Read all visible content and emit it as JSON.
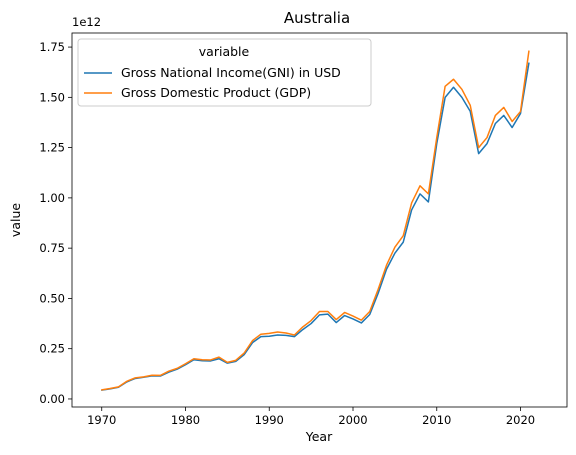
{
  "chart_data": {
    "type": "line",
    "title": "Australia",
    "xlabel": "Year",
    "ylabel": "value",
    "y_offset_label": "1e12",
    "xlim": [
      1966.45,
      2025.55
    ],
    "ylim": [
      -0.04,
      1.82
    ],
    "xticks": [
      1970,
      1980,
      1990,
      2000,
      2010,
      2020
    ],
    "xtick_labels": [
      "1970",
      "1980",
      "1990",
      "2000",
      "2010",
      "2020"
    ],
    "yticks": [
      0.0,
      0.25,
      0.5,
      0.75,
      1.0,
      1.25,
      1.5,
      1.75
    ],
    "ytick_labels": [
      "0.00",
      "0.25",
      "0.50",
      "0.75",
      "1.00",
      "1.25",
      "1.50",
      "1.75"
    ],
    "grid": false,
    "legend": {
      "title": "variable",
      "placement": "top-left"
    },
    "x": [
      1970,
      1971,
      1972,
      1973,
      1974,
      1975,
      1976,
      1977,
      1978,
      1979,
      1980,
      1981,
      1982,
      1983,
      1984,
      1985,
      1986,
      1987,
      1988,
      1989,
      1990,
      1991,
      1992,
      1993,
      1994,
      1995,
      1996,
      1997,
      1998,
      1999,
      2000,
      2001,
      2002,
      2003,
      2004,
      2005,
      2006,
      2007,
      2008,
      2009,
      2010,
      2011,
      2012,
      2013,
      2014,
      2015,
      2016,
      2017,
      2018,
      2019,
      2020,
      2021
    ],
    "series": [
      {
        "name": "Gross National Income(GNI) in USD",
        "color": "#1f77b4",
        "values": [
          0.044,
          0.05,
          0.058,
          0.085,
          0.102,
          0.108,
          0.115,
          0.114,
          0.133,
          0.148,
          0.17,
          0.195,
          0.19,
          0.189,
          0.2,
          0.178,
          0.187,
          0.22,
          0.28,
          0.31,
          0.312,
          0.318,
          0.316,
          0.31,
          0.345,
          0.375,
          0.418,
          0.422,
          0.38,
          0.415,
          0.398,
          0.378,
          0.42,
          0.525,
          0.645,
          0.725,
          0.78,
          0.94,
          1.02,
          0.98,
          1.27,
          1.5,
          1.55,
          1.5,
          1.43,
          1.22,
          1.27,
          1.37,
          1.41,
          1.35,
          1.42,
          1.67
        ]
      },
      {
        "name": "Gross Domestic Product (GDP)",
        "color": "#ff7f0e",
        "values": [
          0.045,
          0.052,
          0.06,
          0.088,
          0.105,
          0.11,
          0.118,
          0.117,
          0.138,
          0.152,
          0.175,
          0.2,
          0.195,
          0.194,
          0.208,
          0.182,
          0.192,
          0.228,
          0.29,
          0.322,
          0.326,
          0.333,
          0.328,
          0.318,
          0.358,
          0.39,
          0.435,
          0.435,
          0.395,
          0.43,
          0.412,
          0.392,
          0.435,
          0.545,
          0.665,
          0.755,
          0.812,
          0.975,
          1.06,
          1.02,
          1.3,
          1.555,
          1.59,
          1.54,
          1.46,
          1.25,
          1.3,
          1.41,
          1.45,
          1.38,
          1.43,
          1.73
        ]
      }
    ]
  }
}
